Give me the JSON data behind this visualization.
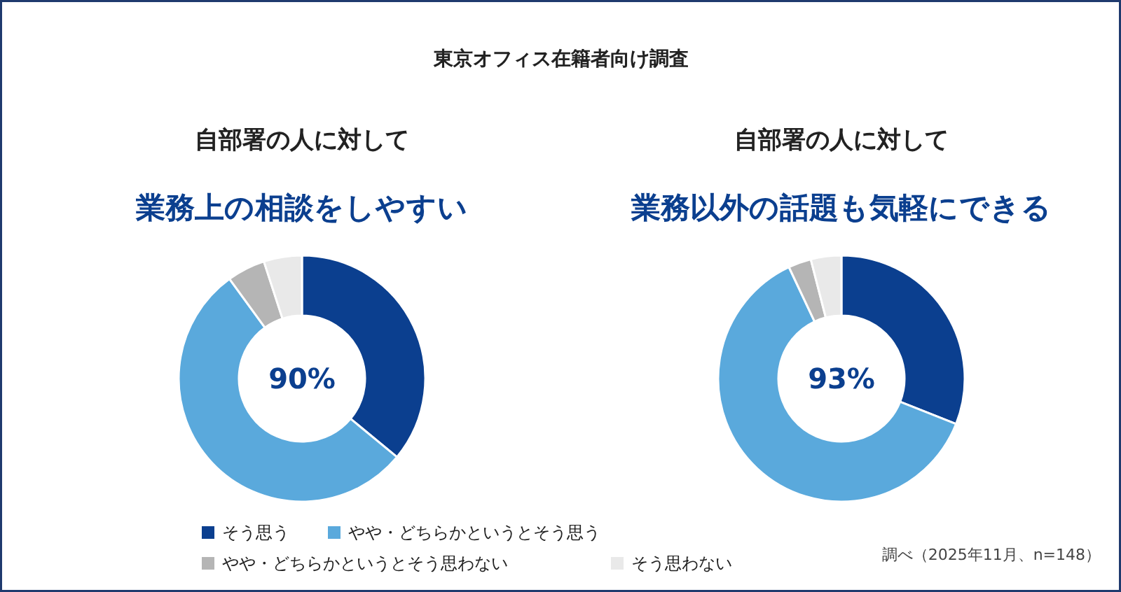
{
  "chart_data": [
    {
      "type": "donut",
      "subtitle": "自部署の人に対して",
      "title": "業務上の相談をしやすい",
      "categories": [
        "そう思う",
        "やや・どちらかというとそう思う",
        "やや・どちらかというとそう思わない",
        "そう思わない"
      ],
      "values": [
        36,
        54,
        5,
        5
      ],
      "colors": [
        "#0b3f8f",
        "#5aa9dc",
        "#b5b5b5",
        "#e9e9e9"
      ],
      "legend": "bottom",
      "annotations": [
        "東京オフィス在籍者向け調査",
        {
          "text": "90%"
        }
      ]
    },
    {
      "type": "donut",
      "subtitle": "自部署の人に対して",
      "title": "業務以外の話題も気軽にできる",
      "categories": [
        null,
        null,
        null,
        null
      ],
      "values": [
        31,
        62,
        3,
        4
      ],
      "colors": [
        "#0b3f8f",
        "#5aa9dc",
        "#b5b5b5",
        "#e9e9e9"
      ],
      "annotations": [
        {
          "text": "93%"
        },
        "調べ（2025年11月、n=148）"
      ]
    }
  ]
}
